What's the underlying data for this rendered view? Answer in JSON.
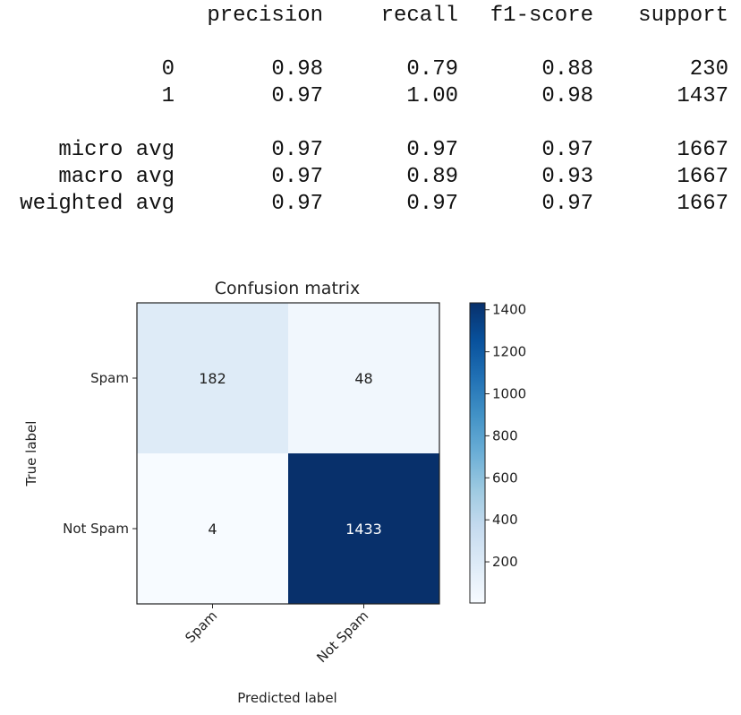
{
  "report": {
    "headers": [
      "precision",
      "recall",
      "f1-score",
      "support"
    ],
    "rows": [
      {
        "label": "0",
        "values": [
          "0.98",
          "0.79",
          "0.88",
          "230"
        ]
      },
      {
        "label": "1",
        "values": [
          "0.97",
          "1.00",
          "0.98",
          "1437"
        ]
      },
      {
        "label": "micro avg",
        "values": [
          "0.97",
          "0.97",
          "0.97",
          "1667"
        ]
      },
      {
        "label": "macro avg",
        "values": [
          "0.97",
          "0.89",
          "0.93",
          "1667"
        ]
      },
      {
        "label": "weighted avg",
        "values": [
          "0.97",
          "0.97",
          "0.97",
          "1667"
        ]
      }
    ]
  },
  "chart_data": {
    "type": "heatmap",
    "title": "Confusion matrix",
    "xlabel": "Predicted label",
    "ylabel": "True label",
    "x_categories": [
      "Spam",
      "Not Spam"
    ],
    "y_categories": [
      "Spam",
      "Not Spam"
    ],
    "matrix": [
      [
        182,
        48
      ],
      [
        4,
        1433
      ]
    ],
    "colormap": "Blues",
    "colors": {
      "low": "#f7fbff",
      "high": "#08306b"
    },
    "colorbar": {
      "min": 4,
      "max": 1433,
      "ticks": [
        200,
        400,
        600,
        800,
        1000,
        1200,
        1400
      ]
    },
    "grid": false
  }
}
